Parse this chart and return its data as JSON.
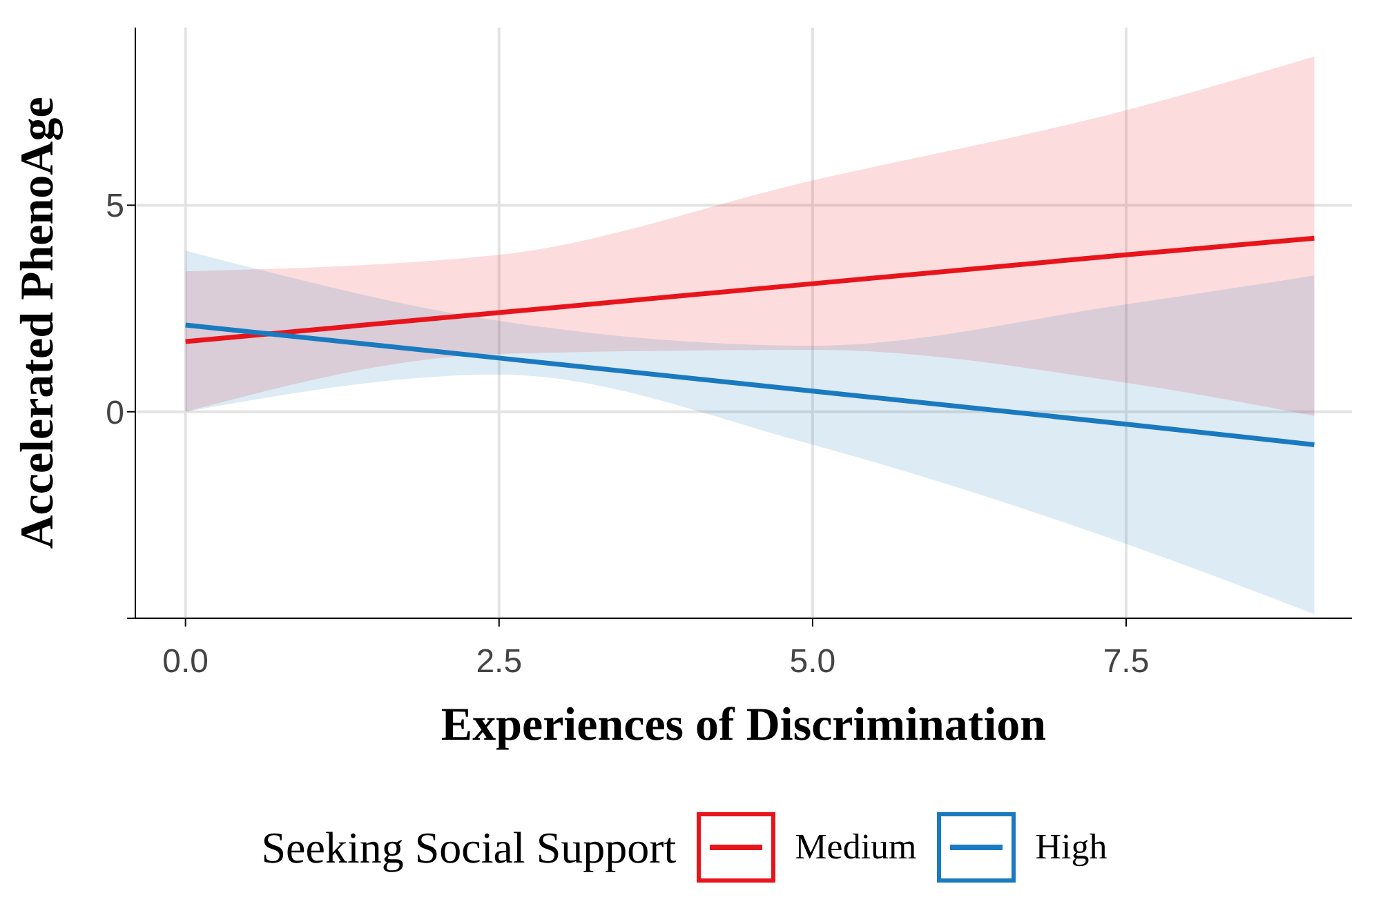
{
  "chart_data": {
    "type": "line",
    "xlabel": "Experiences of Discrimination",
    "ylabel": "Accelerated PhenoAge",
    "legend_title": "Seeking Social Support",
    "x": [
      0,
      2.5,
      5,
      7.5,
      9
    ],
    "series": [
      {
        "name": "Medium",
        "color": "#e8141c",
        "values": [
          1.7,
          2.4,
          3.1,
          3.8,
          4.2
        ],
        "lower": [
          0,
          1.4,
          1.5,
          0.7,
          -0.1
        ],
        "upper": [
          3.4,
          3.8,
          5.6,
          7.3,
          8.6
        ]
      },
      {
        "name": "High",
        "color": "#1a7abf",
        "values": [
          2.1,
          1.3,
          0.5,
          -0.3,
          -0.8
        ],
        "lower": [
          0,
          0.9,
          -0.8,
          -3.2,
          -4.9
        ],
        "upper": [
          3.9,
          2.2,
          1.6,
          2.6,
          3.3
        ]
      }
    ],
    "xlim": [
      -0.4,
      9.3
    ],
    "xticks": [
      {
        "value": 0,
        "label": "0.0"
      },
      2.5,
      {
        "value": 5,
        "label": "5.0"
      },
      7.5
    ],
    "ylim": [
      -5,
      9.3
    ],
    "yticks": [
      {
        "value": -5,
        "label": null
      },
      0,
      5
    ],
    "grid": true,
    "legend": "bottom",
    "line_style": "solid",
    "marker": "none"
  }
}
